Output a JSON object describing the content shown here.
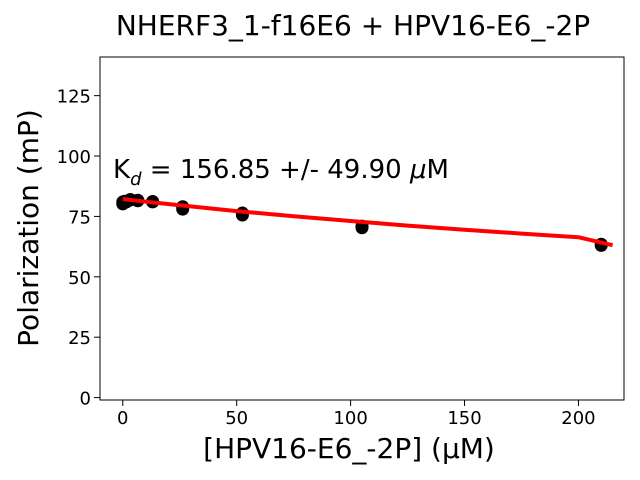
{
  "chart_data": {
    "type": "scatter",
    "title": "NHERF3_1-f16E6 + HPV16-E6_-2P",
    "xlabel": "[HPV16-E6_-2P] (µM)",
    "ylabel": "Polarization (mP)",
    "xlim": [
      -10,
      220
    ],
    "ylim": [
      -1,
      141
    ],
    "x_ticks": [
      0,
      50,
      100,
      150,
      200
    ],
    "y_ticks": [
      0,
      25,
      50,
      75,
      100,
      125
    ],
    "grid": false,
    "annotation": {
      "k_label": "K",
      "k_sub": "d",
      "rest": " = 156.85 +/- 49.90 ",
      "mu": "μ",
      "unit": "M"
    },
    "series": [
      {
        "kind": "points",
        "color": "#000000",
        "x": [
          0,
          0,
          0.8,
          1.6,
          3.3,
          3.3,
          6.6,
          6.6,
          13.1,
          13.1,
          26.3,
          26.3,
          52.5,
          52.5,
          105,
          105,
          210,
          210
        ],
        "y": [
          80.2,
          81.0,
          81.3,
          81.0,
          81.8,
          82.0,
          81.5,
          81.7,
          81.0,
          81.2,
          78.0,
          79.0,
          75.6,
          76.4,
          70.3,
          71.0,
          63.0,
          63.5
        ]
      },
      {
        "kind": "fit",
        "color": "#ff0000",
        "x": [
          0,
          10,
          25,
          50,
          75,
          100,
          125,
          150,
          175,
          200,
          215
        ],
        "y": [
          82.2,
          81.1,
          79.6,
          77.2,
          75.1,
          73.1,
          71.2,
          69.5,
          67.9,
          66.4,
          63.1
        ]
      }
    ]
  }
}
